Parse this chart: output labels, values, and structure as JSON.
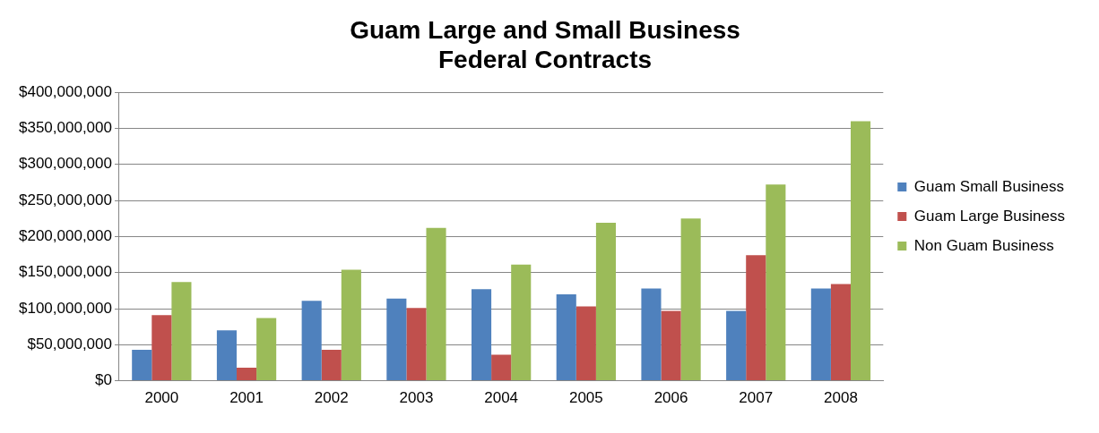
{
  "chart_data": {
    "type": "bar",
    "title": [
      "Guam Large and Small Business",
      "Federal Contracts"
    ],
    "categories": [
      "2000",
      "2001",
      "2002",
      "2003",
      "2004",
      "2005",
      "2006",
      "2007",
      "2008"
    ],
    "series": [
      {
        "name": "Guam Small Business",
        "color": "#4f81bd",
        "values": [
          43000000,
          70000000,
          111000000,
          114000000,
          127000000,
          120000000,
          128000000,
          97000000,
          128000000
        ]
      },
      {
        "name": "Guam Large Business",
        "color": "#c0504d",
        "values": [
          91000000,
          18000000,
          43000000,
          101000000,
          36000000,
          103000000,
          97000000,
          174000000,
          134000000
        ]
      },
      {
        "name": "Non Guam Business",
        "color": "#9bbb59",
        "values": [
          137000000,
          87000000,
          154000000,
          212000000,
          161000000,
          219000000,
          225000000,
          272000000,
          360000000
        ]
      }
    ],
    "ylim": [
      0,
      400000000
    ],
    "yticks": [
      {
        "value": 0,
        "label": "$0"
      },
      {
        "value": 50000000,
        "label": "$50,000,000"
      },
      {
        "value": 100000000,
        "label": "$100,000,000"
      },
      {
        "value": 150000000,
        "label": "$150,000,000"
      },
      {
        "value": 200000000,
        "label": "$200,000,000"
      },
      {
        "value": 250000000,
        "label": "$250,000,000"
      },
      {
        "value": 300000000,
        "label": "$300,000,000"
      },
      {
        "value": 350000000,
        "label": "$350,000,000"
      },
      {
        "value": 400000000,
        "label": "$400,000,000"
      }
    ],
    "grid": "y",
    "legend": "right"
  }
}
